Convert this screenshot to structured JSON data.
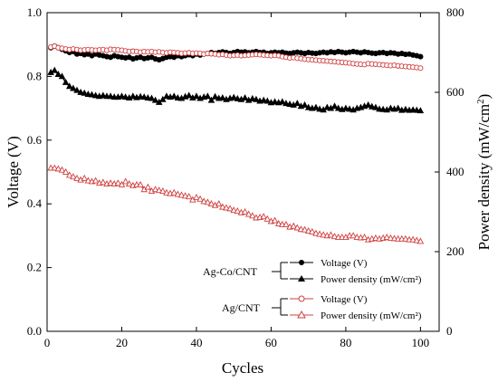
{
  "chart_data": {
    "type": "scatter",
    "xlabel": "Cycles",
    "ylabel_left": "Voltage (V)",
    "ylabel_right": "Power density (mW/cm²)",
    "xlim": [
      0,
      105
    ],
    "ylim_left": [
      0,
      1.0
    ],
    "ylim_right": [
      0,
      800
    ],
    "x_ticks": [
      "0",
      "20",
      "40",
      "60",
      "80",
      "100"
    ],
    "y_ticks_left": [
      "0.0",
      "0.2",
      "0.4",
      "0.6",
      "0.8",
      "1.0"
    ],
    "y_ticks_right": [
      "0",
      "200",
      "400",
      "600",
      "800"
    ],
    "legend": {
      "groups": [
        {
          "label": "Ag-Co/CNT",
          "entries": [
            {
              "text": "Voltage (V)",
              "marker": "filled-circle"
            },
            {
              "text": "Power density (mW/cm²)",
              "marker": "filled-triangle"
            }
          ]
        },
        {
          "label": "Ag/CNT",
          "entries": [
            {
              "text": "Voltage (V)",
              "marker": "open-circle"
            },
            {
              "text": "Power density (mW/cm²)",
              "marker": "open-triangle"
            }
          ]
        }
      ],
      "placement": "bottom-right"
    },
    "series": [
      {
        "axis": "left",
        "color": "#000000",
        "marker": "filled-circle",
        "x": [
          1,
          2,
          3,
          4,
          5,
          6,
          7,
          8,
          9,
          10,
          11,
          12,
          13,
          14,
          15,
          16,
          17,
          18,
          19,
          20,
          21,
          22,
          23,
          24,
          25,
          26,
          27,
          28,
          29,
          30,
          31,
          32,
          33,
          34,
          35,
          36,
          37,
          38,
          39,
          40,
          41,
          42,
          43,
          44,
          45,
          46,
          47,
          48,
          49,
          50,
          51,
          52,
          53,
          54,
          55,
          56,
          57,
          58,
          59,
          60,
          61,
          62,
          63,
          64,
          65,
          66,
          67,
          68,
          69,
          70,
          71,
          72,
          73,
          74,
          75,
          76,
          77,
          78,
          79,
          80,
          81,
          82,
          83,
          84,
          85,
          86,
          87,
          88,
          89,
          90,
          91,
          92,
          93,
          94,
          95,
          96,
          97,
          98,
          99,
          100
        ],
        "y": [
          0.89,
          0.895,
          0.89,
          0.885,
          0.88,
          0.875,
          0.878,
          0.87,
          0.872,
          0.868,
          0.87,
          0.865,
          0.87,
          0.867,
          0.865,
          0.862,
          0.86,
          0.865,
          0.862,
          0.86,
          0.858,
          0.86,
          0.855,
          0.858,
          0.86,
          0.856,
          0.858,
          0.86,
          0.855,
          0.852,
          0.856,
          0.86,
          0.862,
          0.86,
          0.865,
          0.862,
          0.865,
          0.868,
          0.865,
          0.87,
          0.867,
          0.87,
          0.872,
          0.875,
          0.872,
          0.875,
          0.877,
          0.875,
          0.872,
          0.875,
          0.878,
          0.876,
          0.877,
          0.874,
          0.876,
          0.878,
          0.875,
          0.876,
          0.872,
          0.874,
          0.876,
          0.874,
          0.876,
          0.873,
          0.872,
          0.874,
          0.876,
          0.874,
          0.872,
          0.875,
          0.873,
          0.872,
          0.874,
          0.876,
          0.874,
          0.877,
          0.875,
          0.878,
          0.876,
          0.874,
          0.876,
          0.878,
          0.876,
          0.874,
          0.877,
          0.875,
          0.873,
          0.872,
          0.874,
          0.875,
          0.872,
          0.874,
          0.873,
          0.87,
          0.872,
          0.869,
          0.87,
          0.867,
          0.865,
          0.862
        ]
      },
      {
        "axis": "right",
        "color": "#000000",
        "marker": "filled-triangle",
        "x": [
          1,
          2,
          3,
          4,
          5,
          6,
          7,
          8,
          9,
          10,
          11,
          12,
          13,
          14,
          15,
          16,
          17,
          18,
          19,
          20,
          21,
          22,
          23,
          24,
          25,
          26,
          27,
          28,
          29,
          30,
          31,
          32,
          33,
          34,
          35,
          36,
          37,
          38,
          39,
          40,
          41,
          42,
          43,
          44,
          45,
          46,
          47,
          48,
          49,
          50,
          51,
          52,
          53,
          54,
          55,
          56,
          57,
          58,
          59,
          60,
          61,
          62,
          63,
          64,
          65,
          66,
          67,
          68,
          69,
          70,
          71,
          72,
          73,
          74,
          75,
          76,
          77,
          78,
          79,
          80,
          81,
          82,
          83,
          84,
          85,
          86,
          87,
          88,
          89,
          90,
          91,
          92,
          93,
          94,
          95,
          96,
          97,
          98,
          99,
          100
        ],
        "y": [
          650,
          655,
          645,
          640,
          625,
          615,
          610,
          605,
          600,
          598,
          595,
          594,
          592,
          590,
          592,
          590,
          590,
          588,
          588,
          590,
          588,
          586,
          590,
          587,
          589,
          588,
          586,
          585,
          580,
          575,
          582,
          590,
          588,
          590,
          586,
          585,
          589,
          592,
          586,
          590,
          585,
          588,
          590,
          580,
          589,
          585,
          586,
          582,
          585,
          587,
          584,
          582,
          586,
          580,
          584,
          582,
          578,
          580,
          578,
          574,
          576,
          574,
          576,
          572,
          570,
          568,
          572,
          565,
          568,
          562,
          560,
          562,
          558,
          556,
          562,
          560,
          565,
          560,
          557,
          560,
          558,
          556,
          560,
          562,
          565,
          568,
          564,
          562,
          558,
          557,
          556,
          560,
          558,
          560,
          555,
          557,
          555,
          556,
          555,
          554
        ]
      },
      {
        "axis": "left",
        "color": "#d04040",
        "marker": "open-circle",
        "x": [
          1,
          2,
          3,
          4,
          5,
          6,
          7,
          8,
          9,
          10,
          11,
          12,
          13,
          14,
          15,
          16,
          17,
          18,
          19,
          20,
          21,
          22,
          23,
          24,
          25,
          26,
          27,
          28,
          29,
          30,
          31,
          32,
          33,
          34,
          35,
          36,
          37,
          38,
          39,
          40,
          41,
          42,
          43,
          44,
          45,
          46,
          47,
          48,
          49,
          50,
          51,
          52,
          53,
          54,
          55,
          56,
          57,
          58,
          59,
          60,
          61,
          62,
          63,
          64,
          65,
          66,
          67,
          68,
          69,
          70,
          71,
          72,
          73,
          74,
          75,
          76,
          77,
          78,
          79,
          80,
          81,
          82,
          83,
          84,
          85,
          86,
          87,
          88,
          89,
          90,
          91,
          92,
          93,
          94,
          95,
          96,
          97,
          98,
          99,
          100
        ],
        "y": [
          0.892,
          0.895,
          0.89,
          0.888,
          0.886,
          0.884,
          0.886,
          0.884,
          0.882,
          0.883,
          0.884,
          0.883,
          0.882,
          0.883,
          0.884,
          0.882,
          0.885,
          0.884,
          0.883,
          0.882,
          0.88,
          0.878,
          0.879,
          0.878,
          0.876,
          0.878,
          0.877,
          0.878,
          0.876,
          0.877,
          0.875,
          0.874,
          0.876,
          0.875,
          0.874,
          0.872,
          0.873,
          0.874,
          0.872,
          0.873,
          0.872,
          0.87,
          0.872,
          0.871,
          0.87,
          0.868,
          0.869,
          0.867,
          0.865,
          0.866,
          0.867,
          0.865,
          0.866,
          0.867,
          0.868,
          0.869,
          0.868,
          0.867,
          0.866,
          0.865,
          0.866,
          0.865,
          0.862,
          0.86,
          0.858,
          0.859,
          0.857,
          0.856,
          0.854,
          0.853,
          0.852,
          0.851,
          0.85,
          0.849,
          0.848,
          0.847,
          0.846,
          0.845,
          0.844,
          0.843,
          0.842,
          0.84,
          0.839,
          0.838,
          0.837,
          0.84,
          0.839,
          0.838,
          0.837,
          0.836,
          0.835,
          0.834,
          0.835,
          0.833,
          0.832,
          0.831,
          0.83,
          0.829,
          0.828,
          0.826
        ]
      },
      {
        "axis": "right",
        "color": "#d04040",
        "marker": "open-triangle",
        "x": [
          1,
          2,
          3,
          4,
          5,
          6,
          7,
          8,
          9,
          10,
          11,
          12,
          13,
          14,
          15,
          16,
          17,
          18,
          19,
          20,
          21,
          22,
          23,
          24,
          25,
          26,
          27,
          28,
          29,
          30,
          31,
          32,
          33,
          34,
          35,
          36,
          37,
          38,
          39,
          40,
          41,
          42,
          43,
          44,
          45,
          46,
          47,
          48,
          49,
          50,
          51,
          52,
          53,
          54,
          55,
          56,
          57,
          58,
          59,
          60,
          61,
          62,
          63,
          64,
          65,
          66,
          67,
          68,
          69,
          70,
          71,
          72,
          73,
          74,
          75,
          76,
          77,
          78,
          79,
          80,
          81,
          82,
          83,
          84,
          85,
          86,
          87,
          88,
          89,
          90,
          91,
          92,
          93,
          94,
          95,
          96,
          97,
          98,
          99,
          100
        ],
        "y": [
          410,
          410,
          408,
          405,
          400,
          392,
          388,
          384,
          380,
          384,
          378,
          376,
          378,
          372,
          374,
          370,
          372,
          370,
          372,
          368,
          376,
          370,
          366,
          368,
          368,
          356,
          362,
          352,
          356,
          354,
          352,
          348,
          346,
          348,
          344,
          342,
          340,
          338,
          330,
          336,
          332,
          326,
          324,
          320,
          316,
          320,
          312,
          310,
          308,
          304,
          302,
          298,
          300,
          294,
          290,
          285,
          286,
          288,
          282,
          276,
          278,
          270,
          268,
          268,
          262,
          264,
          260,
          256,
          255,
          252,
          250,
          246,
          244,
          242,
          240,
          242,
          238,
          236,
          236,
          236,
          240,
          240,
          236,
          235,
          236,
          230,
          232,
          234,
          232,
          234,
          236,
          234,
          233,
          232,
          232,
          232,
          230,
          230,
          228,
          226
        ]
      }
    ]
  }
}
